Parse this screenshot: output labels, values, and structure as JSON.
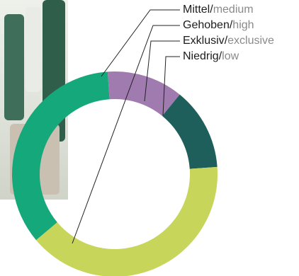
{
  "chart_data": {
    "type": "pie",
    "variant": "donut",
    "title": "",
    "slices": [
      {
        "label_de": "Mittel",
        "label_en": "medium",
        "value": 35,
        "color": "#14a87a"
      },
      {
        "label_de": "Gehoben",
        "label_en": "high",
        "value": 40,
        "color": "#c7d55a"
      },
      {
        "label_de": "Exklusiv",
        "label_en": "exclusive",
        "value": 12,
        "color": "#a07bb0"
      },
      {
        "label_de": "Niedrig",
        "label_en": "low",
        "value": 13,
        "color": "#1e5f5c"
      }
    ],
    "legend_separator": "/"
  }
}
